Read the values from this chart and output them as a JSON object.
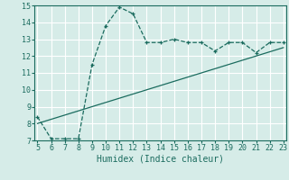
{
  "xlabel": "Humidex (Indice chaleur)",
  "ylabel": "",
  "bg_color": "#d6ece8",
  "line_color": "#1a6b5e",
  "grid_color": "#ffffff",
  "x_data": [
    5,
    6,
    7,
    8,
    9,
    10,
    11,
    12,
    13,
    14,
    15,
    16,
    17,
    18,
    19,
    20,
    21,
    22,
    23
  ],
  "y_data": [
    8.4,
    7.1,
    7.1,
    7.1,
    11.5,
    13.8,
    14.9,
    14.5,
    12.8,
    12.8,
    13.0,
    12.8,
    12.8,
    12.3,
    12.8,
    12.8,
    12.2,
    12.8,
    12.8
  ],
  "trend_x": [
    5,
    23
  ],
  "trend_y": [
    8.0,
    12.5
  ],
  "xlim": [
    5,
    23
  ],
  "ylim": [
    7,
    15
  ],
  "xticks": [
    5,
    6,
    7,
    8,
    9,
    10,
    11,
    12,
    13,
    14,
    15,
    16,
    17,
    18,
    19,
    20,
    21,
    22,
    23
  ],
  "yticks": [
    7,
    8,
    9,
    10,
    11,
    12,
    13,
    14,
    15
  ],
  "tick_fontsize": 6,
  "label_fontsize": 7
}
